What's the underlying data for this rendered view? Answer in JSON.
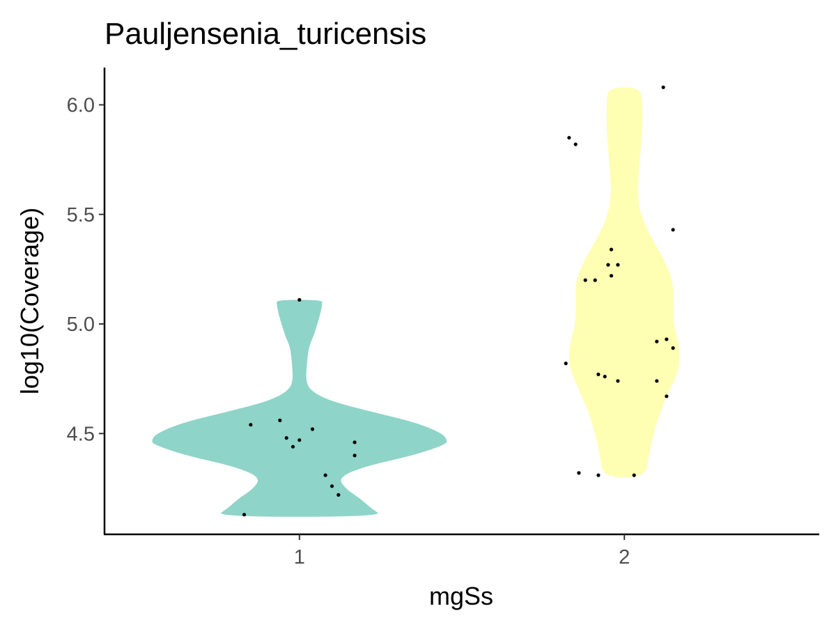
{
  "chart_data": {
    "type": "violin",
    "title": "Pauljensenia_turicensis",
    "xlabel": "mgSs",
    "ylabel": "log10(Coverage)",
    "categories": [
      "1",
      "2"
    ],
    "ylim": [
      4.04,
      6.17
    ],
    "yticks": [
      4.5,
      5.0,
      5.5,
      6.0
    ],
    "ytick_labels": [
      "4.5",
      "5.0",
      "5.5",
      "6.0"
    ],
    "grid": false,
    "legend": "none",
    "colors": {
      "1": "#8fd4c8",
      "2": "#ffffb3"
    },
    "violins": [
      {
        "category": "1",
        "min": 4.12,
        "max": 5.11,
        "profile": [
          [
            4.12,
            0.26
          ],
          [
            4.16,
            0.22
          ],
          [
            4.2,
            0.19
          ],
          [
            4.25,
            0.14
          ],
          [
            4.3,
            0.12
          ],
          [
            4.35,
            0.2
          ],
          [
            4.4,
            0.35
          ],
          [
            4.45,
            0.45
          ],
          [
            4.47,
            0.455
          ],
          [
            4.5,
            0.44
          ],
          [
            4.55,
            0.36
          ],
          [
            4.6,
            0.22
          ],
          [
            4.65,
            0.09
          ],
          [
            4.7,
            0.03
          ],
          [
            4.75,
            0.02
          ],
          [
            4.8,
            0.022
          ],
          [
            4.85,
            0.025
          ],
          [
            4.9,
            0.03
          ],
          [
            4.95,
            0.045
          ],
          [
            5.0,
            0.055
          ],
          [
            5.05,
            0.065
          ],
          [
            5.09,
            0.07
          ],
          [
            5.11,
            0.07
          ]
        ],
        "points": [
          [
            4.13,
            0.83
          ],
          [
            4.54,
            0.85
          ],
          [
            4.56,
            0.94
          ],
          [
            4.48,
            0.96
          ],
          [
            4.44,
            0.98
          ],
          [
            4.47,
            1.0
          ],
          [
            4.52,
            1.04
          ],
          [
            4.31,
            1.08
          ],
          [
            4.26,
            1.1
          ],
          [
            4.22,
            1.12
          ],
          [
            4.46,
            1.17
          ],
          [
            4.4,
            1.17
          ],
          [
            5.11,
            1.0
          ]
        ]
      },
      {
        "category": "2",
        "min": 4.3,
        "max": 6.08,
        "profile": [
          [
            4.3,
            0.065
          ],
          [
            4.4,
            0.075
          ],
          [
            4.5,
            0.09
          ],
          [
            4.6,
            0.11
          ],
          [
            4.7,
            0.14
          ],
          [
            4.8,
            0.17
          ],
          [
            4.9,
            0.17
          ],
          [
            5.0,
            0.15
          ],
          [
            5.1,
            0.15
          ],
          [
            5.2,
            0.15
          ],
          [
            5.3,
            0.12
          ],
          [
            5.4,
            0.08
          ],
          [
            5.5,
            0.05
          ],
          [
            5.6,
            0.04
          ],
          [
            5.7,
            0.045
          ],
          [
            5.8,
            0.05
          ],
          [
            5.9,
            0.055
          ],
          [
            6.0,
            0.055
          ],
          [
            6.08,
            0.05
          ]
        ],
        "points": [
          [
            6.08,
            2.12
          ],
          [
            5.85,
            1.83
          ],
          [
            5.82,
            1.85
          ],
          [
            5.43,
            2.15
          ],
          [
            5.34,
            1.96
          ],
          [
            5.27,
            1.95
          ],
          [
            5.27,
            1.98
          ],
          [
            5.22,
            1.96
          ],
          [
            5.2,
            1.88
          ],
          [
            5.2,
            1.91
          ],
          [
            4.93,
            2.13
          ],
          [
            4.92,
            2.1
          ],
          [
            4.89,
            2.15
          ],
          [
            4.82,
            1.82
          ],
          [
            4.77,
            1.92
          ],
          [
            4.76,
            1.94
          ],
          [
            4.74,
            1.98
          ],
          [
            4.74,
            2.1
          ],
          [
            4.67,
            2.13
          ],
          [
            4.32,
            1.86
          ],
          [
            4.31,
            1.92
          ],
          [
            4.31,
            2.03
          ]
        ]
      }
    ]
  }
}
